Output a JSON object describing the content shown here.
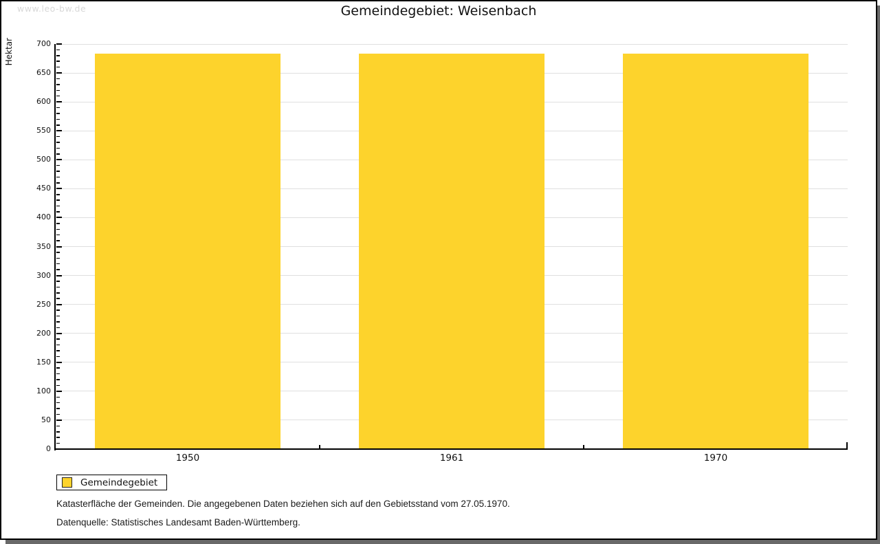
{
  "watermark": "www.leo-bw.de",
  "title": "Gemeindegebiet: Weisenbach",
  "chart_data": {
    "type": "bar",
    "title": "Gemeindegebiet: Weisenbach",
    "categories": [
      "1950",
      "1961",
      "1970"
    ],
    "series": [
      {
        "name": "Gemeindegebiet",
        "values": [
          683,
          683,
          683
        ]
      }
    ],
    "xlabel": "",
    "ylabel": "Hektar",
    "ylim": [
      0,
      700
    ],
    "ytick_step": 50,
    "yminor_step": 10,
    "grid": true,
    "legend_position": "bottom-left",
    "bar_color": "#FDD32C"
  },
  "legend": {
    "items": [
      {
        "label": "Gemeindegebiet",
        "color": "#FDD32C"
      }
    ]
  },
  "footer": {
    "line1": "Katasterfläche der Gemeinden. Die angegebenen Daten beziehen sich auf den Gebietsstand vom 27.05.1970.",
    "line2": "Datenquelle: Statistisches Landesamt Baden-Württemberg."
  },
  "colors": {
    "bar": "#FDD32C",
    "grid": "#dfdfdf",
    "axis": "#000000",
    "watermark": "#d8d8d8",
    "shadow": "#696969"
  }
}
